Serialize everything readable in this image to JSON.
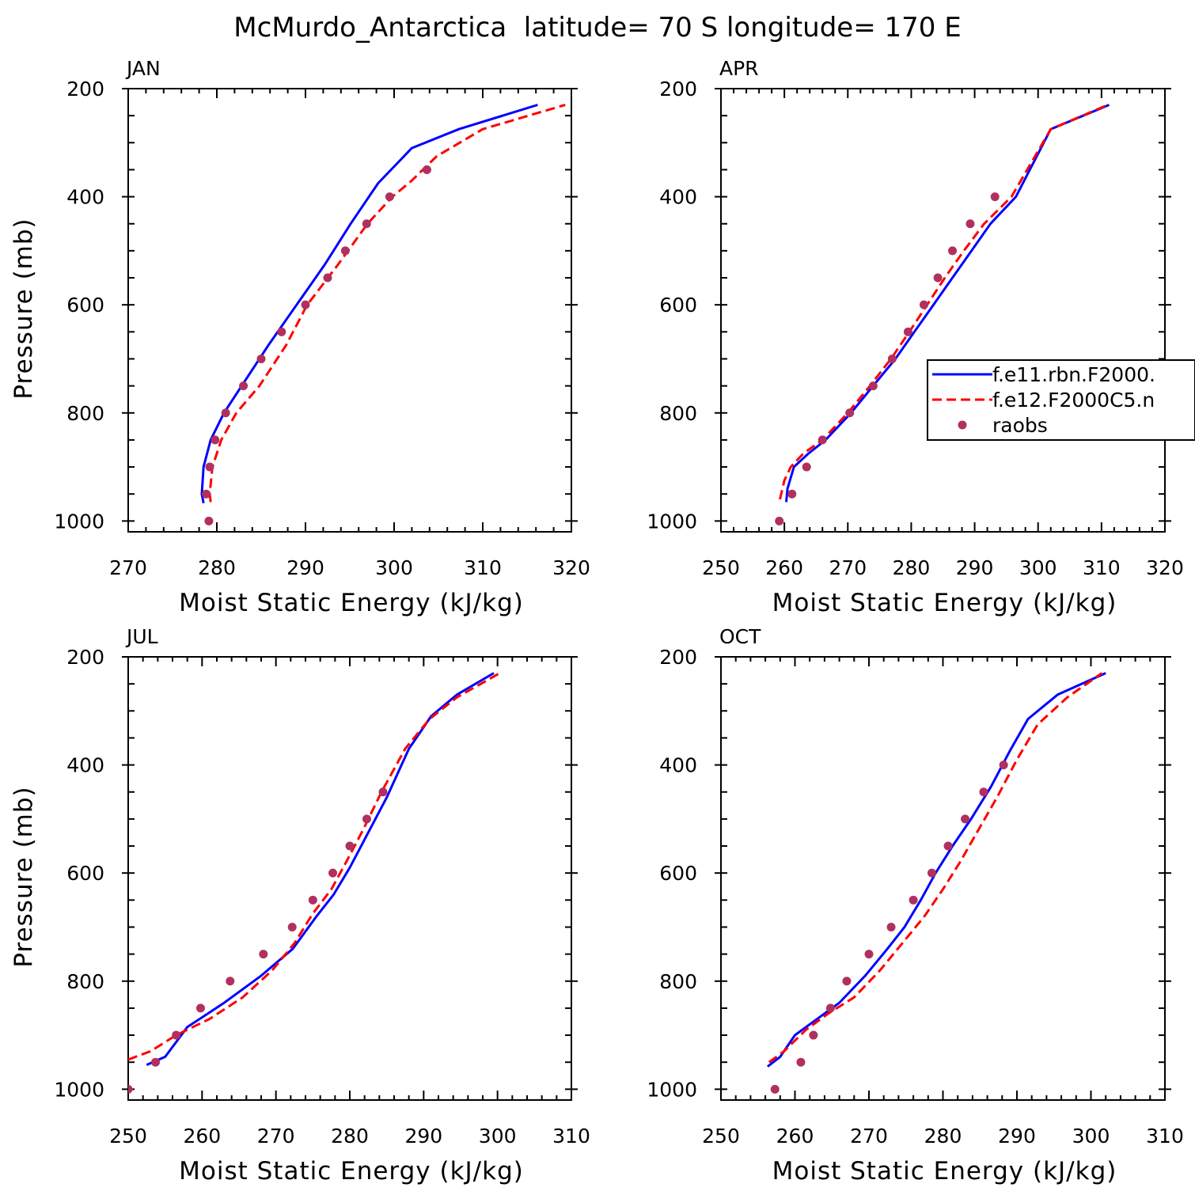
{
  "page_title": "McMurdo_Antarctica  latitude= 70 S longitude= 170 E",
  "colors": {
    "model1": "#0000ff",
    "model2": "#ff0000",
    "obs": "#b03060",
    "axis": "#000000"
  },
  "chart_data": [
    {
      "type": "line",
      "panel": "JAN",
      "xlabel": "Moist Static Energy (kJ/kg)",
      "ylabel": "Pressure (mb)",
      "xlim": [
        270,
        320
      ],
      "ylim": [
        1020,
        200
      ],
      "xticks": [
        270,
        280,
        290,
        300,
        310,
        320
      ],
      "yticks": [
        200,
        400,
        600,
        800,
        1000
      ],
      "y_inverted": true,
      "series": [
        {
          "name": "f.e11.rbn.F2000.",
          "style": "solid",
          "color": "#0000ff",
          "x": [
            278.5,
            278.3,
            278.5,
            279.3,
            280.8,
            282.8,
            285.8,
            289.0,
            292.2,
            295.1,
            298.2,
            302.0,
            307.3,
            316.2
          ],
          "y": [
            967,
            950,
            900,
            850,
            800,
            750,
            675,
            600,
            525,
            450,
            375,
            310,
            275,
            230
          ]
        },
        {
          "name": "f.e12.F2000C5.n",
          "style": "dashed",
          "color": "#ff0000",
          "x": [
            279.3,
            279.2,
            279.5,
            280.5,
            282.2,
            284.8,
            287.8,
            290.2,
            293.7,
            297.0,
            299.8,
            302.0,
            304.8,
            310.0,
            319.3
          ],
          "y": [
            965,
            950,
            900,
            850,
            800,
            750,
            675,
            600,
            525,
            450,
            400,
            370,
            325,
            275,
            230
          ]
        },
        {
          "name": "raobs",
          "style": "markers",
          "color": "#b03060",
          "x": [
            279.1,
            278.8,
            279.2,
            279.8,
            281.0,
            283.0,
            285.0,
            287.3,
            290.0,
            292.5,
            294.5,
            296.9,
            299.5,
            303.7
          ],
          "y": [
            1000,
            950,
            900,
            850,
            800,
            750,
            700,
            650,
            600,
            550,
            500,
            450,
            400,
            350
          ]
        }
      ]
    },
    {
      "type": "line",
      "panel": "APR",
      "xlabel": "Moist Static Energy (kJ/kg)",
      "ylabel": "",
      "xlim": [
        250,
        320
      ],
      "ylim": [
        1020,
        200
      ],
      "xticks": [
        250,
        260,
        270,
        280,
        290,
        300,
        310,
        320
      ],
      "yticks": [
        200,
        400,
        600,
        800,
        1000
      ],
      "y_inverted": true,
      "series": [
        {
          "name": "f.e11.rbn.F2000.",
          "style": "solid",
          "color": "#0000ff",
          "x": [
            260.3,
            260.5,
            261.5,
            263.8,
            266.5,
            270.5,
            274.0,
            277.5,
            280.5,
            283.5,
            286.5,
            289.5,
            292.5,
            296.5,
            302.0,
            311.2
          ],
          "y": [
            965,
            940,
            900,
            875,
            850,
            800,
            750,
            700,
            650,
            600,
            550,
            500,
            450,
            400,
            275,
            230
          ]
        },
        {
          "name": "f.e12.F2000C5.n",
          "style": "dashed",
          "color": "#ff0000",
          "x": [
            259.3,
            260.0,
            261.0,
            263.0,
            266.0,
            270.0,
            273.5,
            276.8,
            279.7,
            282.5,
            285.3,
            288.3,
            291.5,
            295.8,
            302.0,
            311.0
          ],
          "y": [
            960,
            925,
            900,
            875,
            850,
            800,
            750,
            700,
            650,
            600,
            550,
            500,
            450,
            400,
            275,
            230
          ]
        },
        {
          "name": "raobs",
          "style": "markers",
          "color": "#b03060",
          "x": [
            259.2,
            261.2,
            263.5,
            266.0,
            270.3,
            274.0,
            277.0,
            279.5,
            282.0,
            284.2,
            286.5,
            289.3,
            293.2
          ],
          "y": [
            1000,
            950,
            900,
            850,
            800,
            750,
            700,
            650,
            600,
            550,
            500,
            450,
            400
          ]
        }
      ],
      "legend": {
        "placement": "right",
        "entries": [
          "f.e11.rbn.F2000.",
          "f.e12.F2000C5.n",
          "raobs"
        ]
      }
    },
    {
      "type": "line",
      "panel": "JUL",
      "xlabel": "Moist Static Energy (kJ/kg)",
      "ylabel": "Pressure (mb)",
      "xlim": [
        250,
        310
      ],
      "ylim": [
        1020,
        200
      ],
      "xticks": [
        250,
        260,
        270,
        280,
        290,
        300,
        310
      ],
      "yticks": [
        200,
        400,
        600,
        800,
        1000
      ],
      "y_inverted": true,
      "series": [
        {
          "name": "f.e11.rbn.F2000.",
          "style": "solid",
          "color": "#0000ff",
          "x": [
            252.5,
            255.0,
            258.0,
            263.0,
            268.0,
            272.3,
            275.5,
            277.8,
            280.0,
            282.3,
            285.0,
            288.0,
            291.0,
            294.5,
            299.5
          ],
          "y": [
            955,
            940,
            885,
            840,
            790,
            740,
            680,
            640,
            590,
            530,
            460,
            370,
            310,
            270,
            230
          ]
        },
        {
          "name": "f.e12.F2000C5.n",
          "style": "dashed",
          "color": "#ff0000",
          "x": [
            250.0,
            253.0,
            256.5,
            261.0,
            265.5,
            269.5,
            272.5,
            275.0,
            277.5,
            279.5,
            281.8,
            284.3,
            287.5,
            290.8,
            294.5,
            300.3
          ],
          "y": [
            945,
            930,
            900,
            870,
            830,
            780,
            730,
            675,
            630,
            580,
            520,
            450,
            370,
            315,
            275,
            230
          ]
        },
        {
          "name": "raobs",
          "style": "markers",
          "color": "#b03060",
          "x": [
            250.0,
            253.7,
            256.5,
            259.8,
            263.8,
            268.3,
            272.2,
            275.0,
            277.7,
            280.0,
            282.3,
            284.5
          ],
          "y": [
            1000,
            950,
            900,
            850,
            800,
            750,
            700,
            650,
            600,
            550,
            500,
            450
          ]
        }
      ]
    },
    {
      "type": "line",
      "panel": "OCT",
      "xlabel": "Moist Static Energy (kJ/kg)",
      "ylabel": "",
      "xlim": [
        250,
        310
      ],
      "ylim": [
        1020,
        200
      ],
      "xticks": [
        250,
        260,
        270,
        280,
        290,
        300,
        310
      ],
      "yticks": [
        200,
        400,
        600,
        800,
        1000
      ],
      "y_inverted": true,
      "series": [
        {
          "name": "f.e11.rbn.F2000.",
          "style": "solid",
          "color": "#0000ff",
          "x": [
            256.3,
            258.0,
            260.0,
            263.0,
            266.0,
            269.5,
            272.5,
            274.8,
            277.0,
            279.0,
            281.3,
            283.8,
            286.5,
            289.0,
            291.5,
            295.5,
            302.0
          ],
          "y": [
            958,
            940,
            900,
            870,
            840,
            790,
            740,
            700,
            650,
            600,
            550,
            500,
            440,
            375,
            315,
            270,
            230
          ]
        },
        {
          "name": "f.e12.F2000C5.n",
          "style": "dashed",
          "color": "#ff0000",
          "x": [
            256.5,
            258.5,
            261.5,
            264.5,
            268.0,
            271.5,
            274.5,
            277.5,
            280.0,
            282.3,
            284.8,
            287.3,
            290.0,
            292.8,
            296.8,
            301.5
          ],
          "y": [
            950,
            930,
            890,
            860,
            830,
            780,
            730,
            680,
            630,
            580,
            520,
            460,
            390,
            325,
            275,
            230
          ]
        },
        {
          "name": "raobs",
          "style": "markers",
          "color": "#b03060",
          "x": [
            257.3,
            260.8,
            262.5,
            264.8,
            267.0,
            270.0,
            273.0,
            276.0,
            278.5,
            280.7,
            283.0,
            285.5,
            288.2
          ],
          "y": [
            1000,
            950,
            900,
            850,
            800,
            750,
            700,
            650,
            600,
            550,
            500,
            450,
            400
          ]
        }
      ]
    }
  ]
}
